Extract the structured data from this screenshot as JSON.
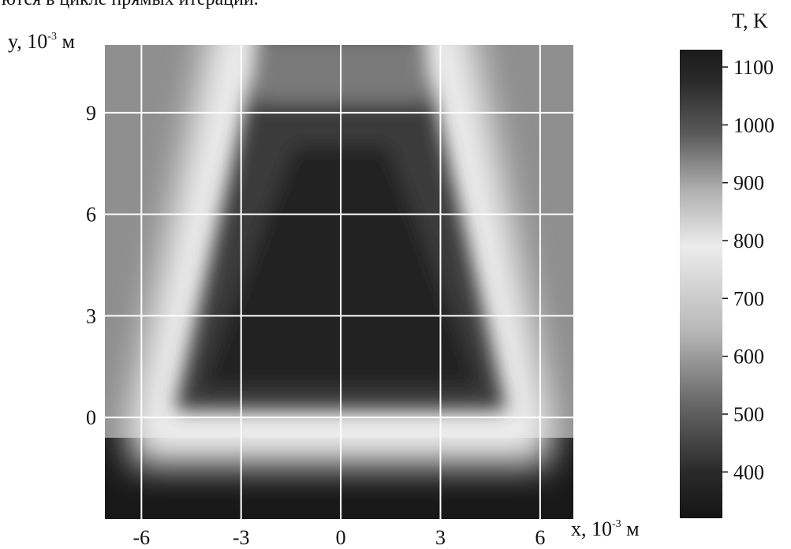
{
  "page": {
    "top_text": "ются в цикле прямых итераций."
  },
  "chart_data": {
    "type": "heatmap",
    "title": "",
    "xlabel": {
      "var": "x, 10",
      "exp": "-3",
      "unit": " м"
    },
    "ylabel": {
      "var": "y, 10",
      "exp": "-3",
      "unit": " м"
    },
    "colorbar_label": "T, K",
    "x_ticks": [
      "-6",
      "-3",
      "0",
      "3",
      "6"
    ],
    "y_ticks": [
      "9",
      "6",
      "3",
      "0"
    ],
    "x_tick_values": [
      -6,
      -3,
      0,
      3,
      6
    ],
    "y_tick_values": [
      9,
      6,
      3,
      0
    ],
    "xlim": [
      -7.1,
      7.0
    ],
    "ylim": [
      -3.0,
      11.0
    ],
    "colorbar_ticks": [
      "1100",
      "1000",
      "900",
      "800",
      "700",
      "600",
      "500",
      "400"
    ],
    "colorbar_tick_values": [
      1100,
      1000,
      900,
      800,
      700,
      600,
      500,
      400
    ],
    "colorbar_range": [
      320,
      1130
    ],
    "grid": true,
    "colorscale": "gray: dark = low (≈350 K), light = 800 K, dark = high (≈1100 K)",
    "field_description_values": {
      "ambient_temperature_K": 350,
      "hot_region_temperature_K": 1090,
      "hot_region_x_extent_at_y0": [
        -5.0,
        5.0
      ],
      "hot_region_x_extent_at_y10": [
        -2.2,
        2.2
      ],
      "hot_region_y_extent": [
        0.0,
        11.0
      ],
      "cool_band_y": -1.0,
      "cool_band_temperature_K": 780
    }
  }
}
